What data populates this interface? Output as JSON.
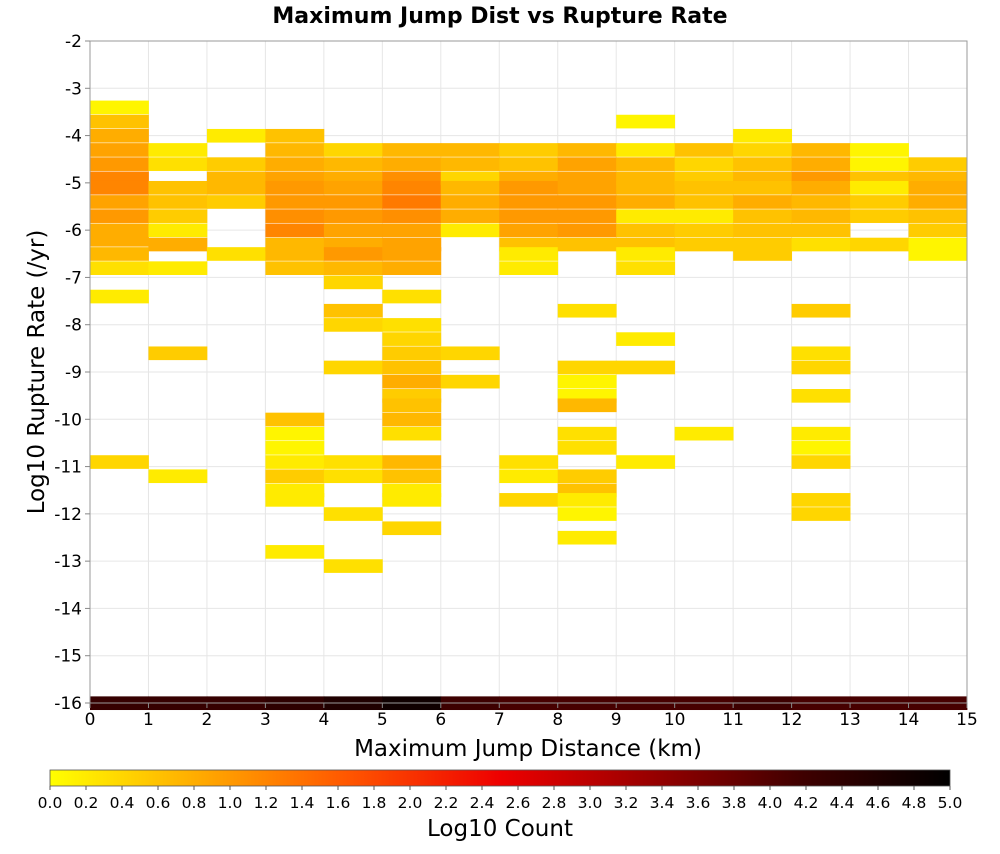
{
  "chart_data": {
    "type": "heatmap",
    "title": "Maximum Jump Dist vs Rupture Rate",
    "xlabel": "Maximum Jump Distance (km)",
    "ylabel": "Log10 Rupture Rate (/yr)",
    "xlim": [
      0,
      15
    ],
    "ylim": [
      -16,
      -2
    ],
    "x_ticks": [
      "0",
      "1",
      "2",
      "3",
      "4",
      "5",
      "6",
      "7",
      "8",
      "9",
      "10",
      "11",
      "12",
      "13",
      "14",
      "15"
    ],
    "y_ticks": [
      "-2",
      "-3",
      "-4",
      "-5",
      "-6",
      "-7",
      "-8",
      "-9",
      "-10",
      "-11",
      "-12",
      "-13",
      "-14",
      "-15",
      "-16"
    ],
    "colorbar": {
      "label": "Log10 Count",
      "range": [
        0,
        5
      ],
      "ticks": [
        "0.0",
        "0.2",
        "0.4",
        "0.6",
        "0.8",
        "1.0",
        "1.2",
        "1.4",
        "1.6",
        "1.8",
        "2.0",
        "2.2",
        "2.4",
        "2.6",
        "2.8",
        "3.0",
        "3.2",
        "3.4",
        "3.6",
        "3.8",
        "4.0",
        "4.2",
        "4.4",
        "4.6",
        "4.8",
        "5.0"
      ],
      "colors": [
        "#ffff00",
        "#ffaa00",
        "#ff5500",
        "#ee0000",
        "#990000",
        "#400000",
        "#000000"
      ]
    },
    "x_bin_width": 1,
    "y_bin_height": 0.28,
    "cells": [
      [
        0,
        -3.4,
        0.1
      ],
      [
        0,
        -3.7,
        0.6
      ],
      [
        0,
        -4.0,
        0.8
      ],
      [
        0,
        -4.3,
        0.9
      ],
      [
        0,
        -4.6,
        1.0
      ],
      [
        0,
        -4.9,
        1.2
      ],
      [
        0,
        -5.1,
        1.2
      ],
      [
        0,
        -5.4,
        0.9
      ],
      [
        0,
        -5.7,
        1.0
      ],
      [
        0,
        -6.0,
        0.8
      ],
      [
        0,
        -6.2,
        0.8
      ],
      [
        0,
        -6.5,
        0.7
      ],
      [
        0,
        -6.8,
        0.3
      ],
      [
        0,
        -7.4,
        0.2
      ],
      [
        0,
        -10.9,
        0.4
      ],
      [
        1,
        -4.3,
        0.2
      ],
      [
        1,
        -4.6,
        0.3
      ],
      [
        1,
        -5.1,
        0.6
      ],
      [
        1,
        -5.4,
        0.6
      ],
      [
        1,
        -5.7,
        0.5
      ],
      [
        1,
        -6.0,
        0.2
      ],
      [
        1,
        -6.3,
        0.8
      ],
      [
        1,
        -6.8,
        0.2
      ],
      [
        1,
        -8.6,
        0.5
      ],
      [
        1,
        -11.2,
        0.2
      ],
      [
        2,
        -4.0,
        0.2
      ],
      [
        2,
        -4.6,
        0.5
      ],
      [
        2,
        -4.9,
        0.7
      ],
      [
        2,
        -5.1,
        0.7
      ],
      [
        2,
        -5.4,
        0.5
      ],
      [
        2,
        -6.5,
        0.3
      ],
      [
        3,
        -4.0,
        0.6
      ],
      [
        3,
        -4.3,
        0.7
      ],
      [
        3,
        -4.6,
        0.8
      ],
      [
        3,
        -4.9,
        0.9
      ],
      [
        3,
        -5.1,
        1.0
      ],
      [
        3,
        -5.4,
        1.0
      ],
      [
        3,
        -5.7,
        1.1
      ],
      [
        3,
        -6.0,
        1.2
      ],
      [
        3,
        -6.3,
        0.7
      ],
      [
        3,
        -6.5,
        0.7
      ],
      [
        3,
        -6.8,
        0.6
      ],
      [
        3,
        -10.0,
        0.6
      ],
      [
        3,
        -10.3,
        0.1
      ],
      [
        3,
        -10.6,
        0.1
      ],
      [
        3,
        -10.9,
        0.2
      ],
      [
        3,
        -11.2,
        0.5
      ],
      [
        3,
        -11.5,
        0.2
      ],
      [
        3,
        -11.7,
        0.2
      ],
      [
        3,
        -12.8,
        0.2
      ],
      [
        4,
        -4.3,
        0.4
      ],
      [
        4,
        -4.6,
        0.7
      ],
      [
        4,
        -4.9,
        0.8
      ],
      [
        4,
        -5.1,
        0.9
      ],
      [
        4,
        -5.4,
        1.0
      ],
      [
        4,
        -5.7,
        1.0
      ],
      [
        4,
        -6.0,
        0.9
      ],
      [
        4,
        -6.3,
        0.8
      ],
      [
        4,
        -6.5,
        1.0
      ],
      [
        4,
        -6.8,
        0.7
      ],
      [
        4,
        -7.1,
        0.4
      ],
      [
        4,
        -7.7,
        0.6
      ],
      [
        4,
        -8.0,
        0.4
      ],
      [
        4,
        -8.9,
        0.4
      ],
      [
        4,
        -10.9,
        0.3
      ],
      [
        4,
        -11.2,
        0.3
      ],
      [
        4,
        -12.0,
        0.3
      ],
      [
        4,
        -13.1,
        0.3
      ],
      [
        5,
        -4.3,
        0.7
      ],
      [
        5,
        -4.6,
        0.8
      ],
      [
        5,
        -4.9,
        1.1
      ],
      [
        5,
        -5.1,
        1.2
      ],
      [
        5,
        -5.4,
        1.3
      ],
      [
        5,
        -5.7,
        1.1
      ],
      [
        5,
        -6.0,
        0.9
      ],
      [
        5,
        -6.3,
        0.9
      ],
      [
        5,
        -6.5,
        0.9
      ],
      [
        5,
        -6.8,
        0.8
      ],
      [
        5,
        -7.4,
        0.3
      ],
      [
        5,
        -8.0,
        0.3
      ],
      [
        5,
        -8.3,
        0.4
      ],
      [
        5,
        -8.6,
        0.5
      ],
      [
        5,
        -8.9,
        0.6
      ],
      [
        5,
        -9.2,
        0.8
      ],
      [
        5,
        -9.5,
        0.5
      ],
      [
        5,
        -9.7,
        0.6
      ],
      [
        5,
        -10.0,
        0.7
      ],
      [
        5,
        -10.3,
        0.3
      ],
      [
        5,
        -10.9,
        0.7
      ],
      [
        5,
        -11.2,
        0.6
      ],
      [
        5,
        -11.5,
        0.2
      ],
      [
        5,
        -11.7,
        0.2
      ],
      [
        5,
        -12.3,
        0.4
      ],
      [
        6,
        -4.3,
        0.7
      ],
      [
        6,
        -4.6,
        0.7
      ],
      [
        6,
        -4.9,
        0.4
      ],
      [
        6,
        -5.1,
        0.7
      ],
      [
        6,
        -5.4,
        0.8
      ],
      [
        6,
        -5.7,
        0.8
      ],
      [
        6,
        -6.0,
        0.2
      ],
      [
        6,
        -8.6,
        0.4
      ],
      [
        6,
        -9.2,
        0.4
      ],
      [
        7,
        -4.3,
        0.5
      ],
      [
        7,
        -4.6,
        0.6
      ],
      [
        7,
        -4.9,
        0.8
      ],
      [
        7,
        -5.1,
        1.0
      ],
      [
        7,
        -5.4,
        1.0
      ],
      [
        7,
        -5.7,
        1.0
      ],
      [
        7,
        -6.0,
        0.9
      ],
      [
        7,
        -6.3,
        0.6
      ],
      [
        7,
        -6.5,
        0.2
      ],
      [
        7,
        -6.8,
        0.2
      ],
      [
        7,
        -10.9,
        0.3
      ],
      [
        7,
        -11.2,
        0.2
      ],
      [
        7,
        -11.7,
        0.4
      ],
      [
        8,
        -4.3,
        0.7
      ],
      [
        8,
        -4.6,
        0.9
      ],
      [
        8,
        -4.9,
        0.9
      ],
      [
        8,
        -5.1,
        0.9
      ],
      [
        8,
        -5.4,
        1.0
      ],
      [
        8,
        -5.7,
        1.0
      ],
      [
        8,
        -6.0,
        1.0
      ],
      [
        8,
        -6.3,
        0.6
      ],
      [
        8,
        -7.7,
        0.3
      ],
      [
        8,
        -8.9,
        0.4
      ],
      [
        8,
        -9.2,
        0.1
      ],
      [
        8,
        -9.5,
        0.1
      ],
      [
        8,
        -9.7,
        0.7
      ],
      [
        8,
        -10.3,
        0.3
      ],
      [
        8,
        -10.6,
        0.3
      ],
      [
        8,
        -11.2,
        0.5
      ],
      [
        8,
        -11.5,
        0.6
      ],
      [
        8,
        -11.7,
        0.2
      ],
      [
        8,
        -12.0,
        0.1
      ],
      [
        8,
        -12.5,
        0.2
      ],
      [
        9,
        -3.7,
        0.1
      ],
      [
        9,
        -4.3,
        0.2
      ],
      [
        9,
        -4.6,
        0.7
      ],
      [
        9,
        -4.9,
        0.7
      ],
      [
        9,
        -5.1,
        0.7
      ],
      [
        9,
        -5.4,
        0.8
      ],
      [
        9,
        -5.7,
        0.2
      ],
      [
        9,
        -6.0,
        0.6
      ],
      [
        9,
        -6.3,
        0.6
      ],
      [
        9,
        -6.5,
        0.2
      ],
      [
        9,
        -6.8,
        0.3
      ],
      [
        9,
        -8.3,
        0.2
      ],
      [
        9,
        -8.9,
        0.4
      ],
      [
        9,
        -10.9,
        0.2
      ],
      [
        10,
        -4.3,
        0.6
      ],
      [
        10,
        -4.6,
        0.4
      ],
      [
        10,
        -4.9,
        0.5
      ],
      [
        10,
        -5.1,
        0.6
      ],
      [
        10,
        -5.4,
        0.6
      ],
      [
        10,
        -5.7,
        0.2
      ],
      [
        10,
        -6.0,
        0.5
      ],
      [
        10,
        -6.3,
        0.5
      ],
      [
        10,
        -10.3,
        0.2
      ],
      [
        11,
        -4.0,
        0.2
      ],
      [
        11,
        -4.3,
        0.4
      ],
      [
        11,
        -4.6,
        0.6
      ],
      [
        11,
        -4.9,
        0.7
      ],
      [
        11,
        -5.1,
        0.6
      ],
      [
        11,
        -5.4,
        0.8
      ],
      [
        11,
        -5.7,
        0.6
      ],
      [
        11,
        -6.0,
        0.6
      ],
      [
        11,
        -6.3,
        0.5
      ],
      [
        11,
        -6.5,
        0.5
      ],
      [
        12,
        -4.3,
        0.7
      ],
      [
        12,
        -4.6,
        0.8
      ],
      [
        12,
        -4.9,
        1.0
      ],
      [
        12,
        -5.1,
        0.8
      ],
      [
        12,
        -5.4,
        0.7
      ],
      [
        12,
        -5.7,
        0.7
      ],
      [
        12,
        -6.0,
        0.6
      ],
      [
        12,
        -6.3,
        0.3
      ],
      [
        12,
        -7.7,
        0.5
      ],
      [
        12,
        -8.6,
        0.3
      ],
      [
        12,
        -8.9,
        0.4
      ],
      [
        12,
        -9.5,
        0.3
      ],
      [
        12,
        -10.3,
        0.2
      ],
      [
        12,
        -10.6,
        0.1
      ],
      [
        12,
        -10.9,
        0.4
      ],
      [
        12,
        -11.7,
        0.4
      ],
      [
        12,
        -12.0,
        0.4
      ],
      [
        13,
        -4.3,
        0.1
      ],
      [
        13,
        -4.6,
        0.1
      ],
      [
        13,
        -4.9,
        0.6
      ],
      [
        13,
        -5.1,
        0.2
      ],
      [
        13,
        -5.4,
        0.5
      ],
      [
        13,
        -5.7,
        0.5
      ],
      [
        13,
        -6.3,
        0.4
      ],
      [
        14,
        -4.6,
        0.5
      ],
      [
        14,
        -4.9,
        0.7
      ],
      [
        14,
        -5.1,
        0.8
      ],
      [
        14,
        -5.4,
        0.8
      ],
      [
        14,
        -5.7,
        0.6
      ],
      [
        14,
        -6.0,
        0.5
      ],
      [
        14,
        -6.3,
        0.1
      ],
      [
        14,
        -6.5,
        0.1
      ],
      [
        0,
        -16.0,
        4.3
      ],
      [
        1,
        -16.0,
        4.3
      ],
      [
        2,
        -16.0,
        4.3
      ],
      [
        3,
        -16.0,
        4.4
      ],
      [
        4,
        -16.0,
        4.6
      ],
      [
        5,
        -16.0,
        4.8
      ],
      [
        6,
        -16.0,
        4.2
      ],
      [
        7,
        -16.0,
        4.1
      ],
      [
        8,
        -16.0,
        4.1
      ],
      [
        9,
        -16.0,
        4.1
      ],
      [
        10,
        -16.0,
        4.1
      ],
      [
        11,
        -16.0,
        4.2
      ],
      [
        12,
        -16.0,
        4.1
      ],
      [
        13,
        -16.0,
        4.1
      ],
      [
        14,
        -16.0,
        4.1
      ]
    ]
  }
}
